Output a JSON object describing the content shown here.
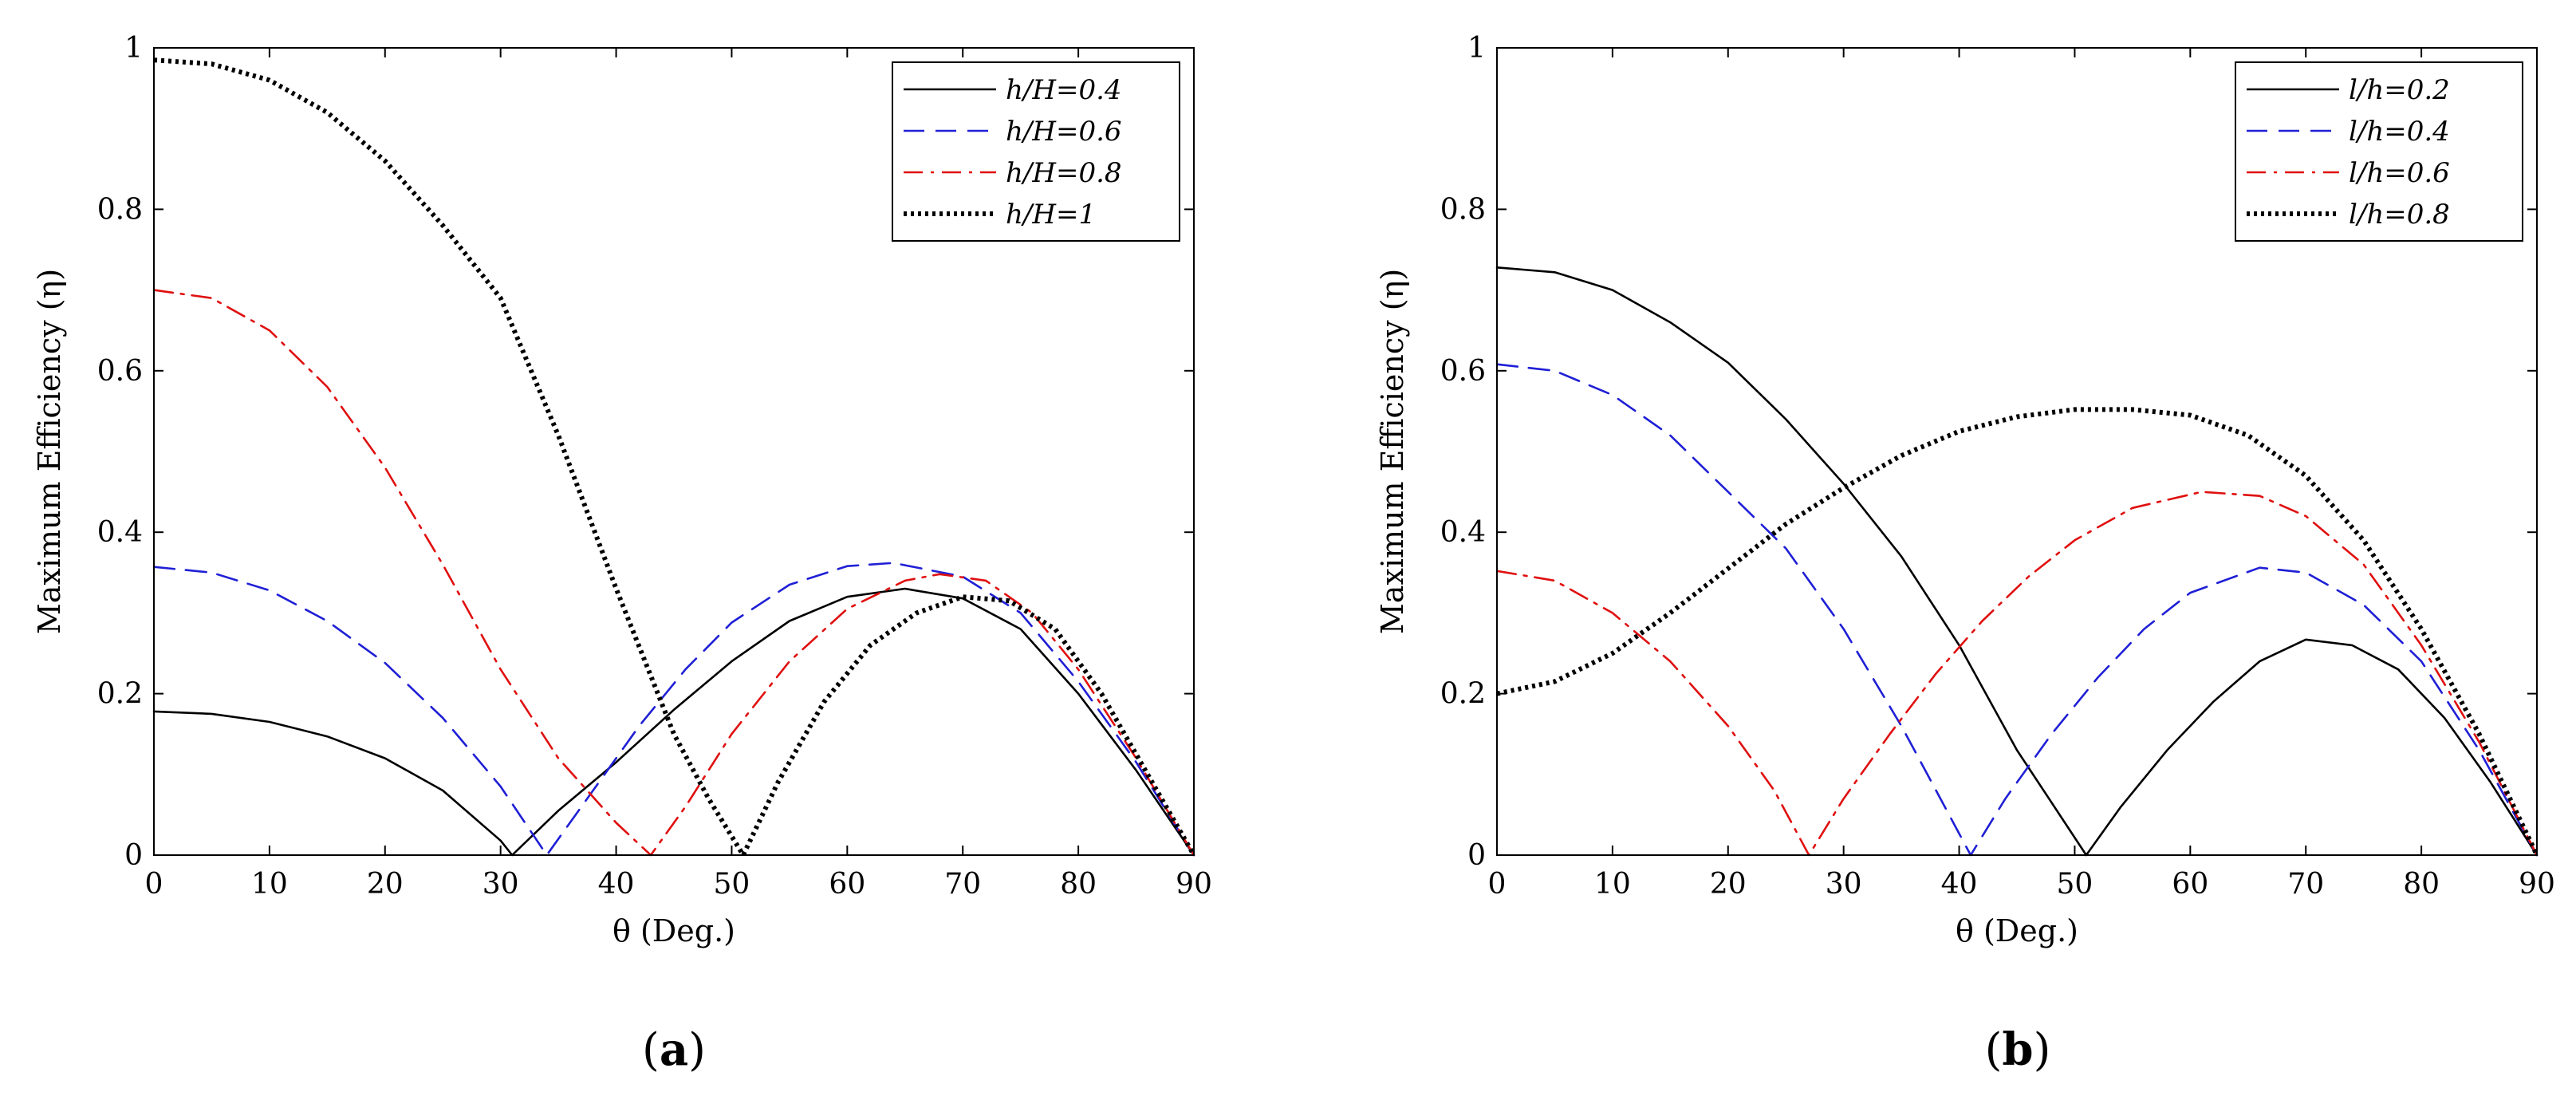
{
  "chart_data": [
    {
      "type": "line",
      "panel_label": "(a)",
      "panel_letter": "a",
      "xlabel": "θ (Deg.)",
      "ylabel": "Maximum Efficiency (η)",
      "xlim": [
        0,
        90
      ],
      "ylim": [
        0,
        1
      ],
      "xticks": [
        0,
        10,
        20,
        30,
        40,
        50,
        60,
        70,
        80,
        90
      ],
      "yticks": [
        0,
        0.2,
        0.4,
        0.6,
        0.8,
        1
      ],
      "ytick_labels": [
        "0",
        "0.2",
        "0.4",
        "0.6",
        "0.8",
        "1"
      ],
      "legend_position": "top-right",
      "series": [
        {
          "name": "h/H=0.4",
          "color": "#000000",
          "style": "solid",
          "x": [
            0,
            5,
            10,
            15,
            20,
            25,
            30,
            31,
            35,
            40,
            45,
            50,
            55,
            60,
            65,
            70,
            75,
            80,
            85,
            90
          ],
          "y": [
            0.178,
            0.175,
            0.165,
            0.147,
            0.12,
            0.08,
            0.018,
            0.0,
            0.055,
            0.115,
            0.18,
            0.24,
            0.29,
            0.32,
            0.33,
            0.318,
            0.28,
            0.2,
            0.105,
            0.0
          ]
        },
        {
          "name": "h/H=0.6",
          "color": "#1f1fd6",
          "style": "dashed",
          "x": [
            0,
            5,
            10,
            15,
            20,
            25,
            30,
            34,
            38,
            42,
            46,
            50,
            55,
            60,
            64,
            70,
            75,
            80,
            85,
            90
          ],
          "y": [
            0.357,
            0.35,
            0.328,
            0.29,
            0.238,
            0.17,
            0.085,
            0.0,
            0.08,
            0.16,
            0.23,
            0.288,
            0.335,
            0.358,
            0.362,
            0.345,
            0.3,
            0.215,
            0.115,
            0.0
          ]
        },
        {
          "name": "h/H=0.8",
          "color": "#e01010",
          "style": "dashdot",
          "x": [
            0,
            5,
            10,
            15,
            20,
            25,
            30,
            35,
            40,
            43,
            46,
            50,
            55,
            60,
            65,
            68,
            72,
            76,
            80,
            85,
            90
          ],
          "y": [
            0.7,
            0.69,
            0.65,
            0.58,
            0.48,
            0.36,
            0.23,
            0.12,
            0.04,
            0.0,
            0.06,
            0.15,
            0.24,
            0.305,
            0.34,
            0.348,
            0.34,
            0.3,
            0.23,
            0.12,
            0.0
          ]
        },
        {
          "name": "h/H=1",
          "color": "#000000",
          "style": "dotted",
          "x": [
            0,
            5,
            10,
            15,
            20,
            25,
            30,
            35,
            40,
            45,
            48,
            51,
            54,
            58,
            62,
            66,
            70,
            74,
            78,
            82,
            86,
            90
          ],
          "y": [
            0.985,
            0.98,
            0.96,
            0.92,
            0.86,
            0.78,
            0.69,
            0.52,
            0.33,
            0.15,
            0.07,
            0.0,
            0.09,
            0.19,
            0.26,
            0.3,
            0.32,
            0.315,
            0.28,
            0.2,
            0.1,
            0.0
          ]
        }
      ]
    },
    {
      "type": "line",
      "panel_label": "(b)",
      "panel_letter": "b",
      "xlabel": "θ (Deg.)",
      "ylabel": "Maximum Efficiency (η)",
      "xlim": [
        0,
        90
      ],
      "ylim": [
        0,
        1
      ],
      "xticks": [
        0,
        10,
        20,
        30,
        40,
        50,
        60,
        70,
        80,
        90
      ],
      "yticks": [
        0,
        0.2,
        0.4,
        0.6,
        0.8,
        1
      ],
      "ytick_labels": [
        "0",
        "0.2",
        "0.4",
        "0.6",
        "0.8",
        "1"
      ],
      "legend_position": "top-right",
      "series": [
        {
          "name": "l/h=0.2",
          "color": "#000000",
          "style": "solid",
          "x": [
            0,
            5,
            10,
            15,
            20,
            25,
            30,
            35,
            40,
            45,
            48,
            51,
            54,
            58,
            62,
            66,
            70,
            74,
            78,
            82,
            86,
            90
          ],
          "y": [
            0.728,
            0.722,
            0.7,
            0.66,
            0.61,
            0.54,
            0.46,
            0.37,
            0.26,
            0.13,
            0.065,
            0.0,
            0.06,
            0.13,
            0.19,
            0.24,
            0.267,
            0.26,
            0.23,
            0.17,
            0.09,
            0.0
          ]
        },
        {
          "name": "l/h=0.4",
          "color": "#1f1fd6",
          "style": "dashed",
          "x": [
            0,
            5,
            10,
            15,
            20,
            25,
            30,
            35,
            38,
            41,
            44,
            48,
            52,
            56,
            60,
            66,
            70,
            75,
            80,
            85,
            90
          ],
          "y": [
            0.608,
            0.6,
            0.57,
            0.52,
            0.45,
            0.38,
            0.28,
            0.16,
            0.08,
            0.0,
            0.07,
            0.15,
            0.22,
            0.28,
            0.325,
            0.356,
            0.35,
            0.31,
            0.24,
            0.13,
            0.0
          ]
        },
        {
          "name": "l/h=0.6",
          "color": "#e01010",
          "style": "dashdot",
          "x": [
            0,
            5,
            10,
            15,
            20,
            24,
            27,
            30,
            34,
            38,
            42,
            46,
            50,
            55,
            61,
            66,
            70,
            75,
            80,
            85,
            90
          ],
          "y": [
            0.352,
            0.34,
            0.3,
            0.24,
            0.16,
            0.08,
            0.0,
            0.07,
            0.15,
            0.225,
            0.29,
            0.345,
            0.39,
            0.43,
            0.45,
            0.445,
            0.42,
            0.36,
            0.26,
            0.14,
            0.0
          ]
        },
        {
          "name": "l/h=0.8",
          "color": "#000000",
          "style": "dotted",
          "x": [
            0,
            5,
            10,
            15,
            20,
            25,
            30,
            35,
            40,
            45,
            50,
            55,
            60,
            65,
            70,
            75,
            80,
            85,
            90
          ],
          "y": [
            0.2,
            0.215,
            0.25,
            0.3,
            0.355,
            0.41,
            0.455,
            0.495,
            0.525,
            0.543,
            0.552,
            0.552,
            0.545,
            0.52,
            0.47,
            0.39,
            0.28,
            0.15,
            0.0
          ]
        }
      ]
    }
  ]
}
